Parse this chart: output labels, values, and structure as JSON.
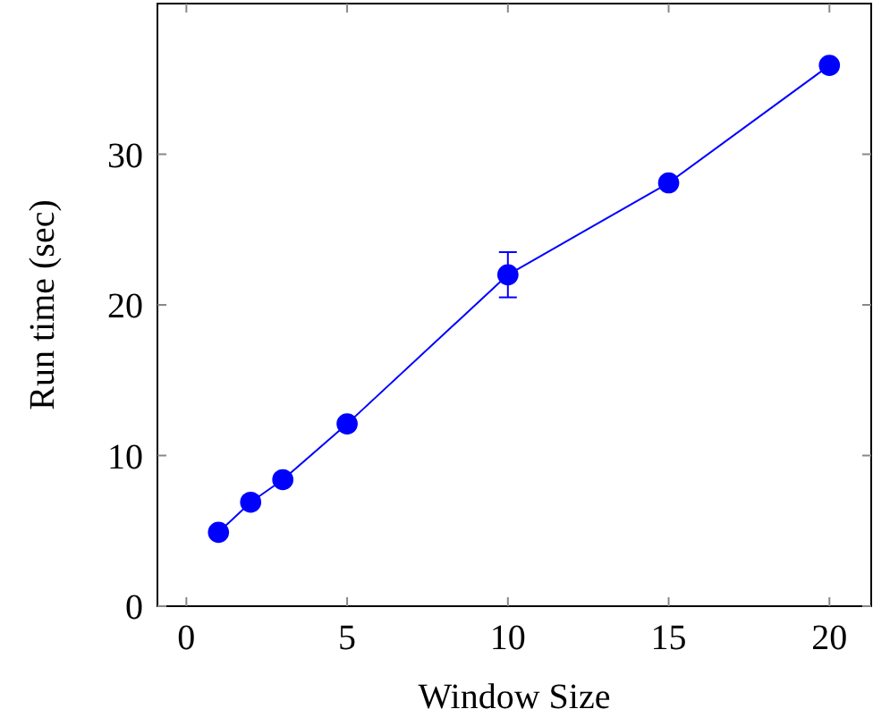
{
  "chart_data": {
    "type": "line",
    "xlabel": "Window Size",
    "ylabel": "Run time (sec)",
    "x": [
      1,
      2,
      3,
      5,
      10,
      15,
      20
    ],
    "series": [
      {
        "color": "#0000ff",
        "values": [
          4.9,
          6.9,
          8.4,
          12.1,
          22.0,
          28.1,
          35.9
        ],
        "errors": [
          null,
          null,
          null,
          null,
          1.5,
          null,
          null
        ]
      }
    ],
    "xlim": [
      -0.9,
      21.3
    ],
    "ylim": [
      0,
      40
    ],
    "xticks": [
      0,
      5,
      10,
      15,
      20
    ],
    "yticks": [
      0,
      10,
      20,
      30
    ],
    "marker": "circle",
    "line_style": "solid"
  }
}
